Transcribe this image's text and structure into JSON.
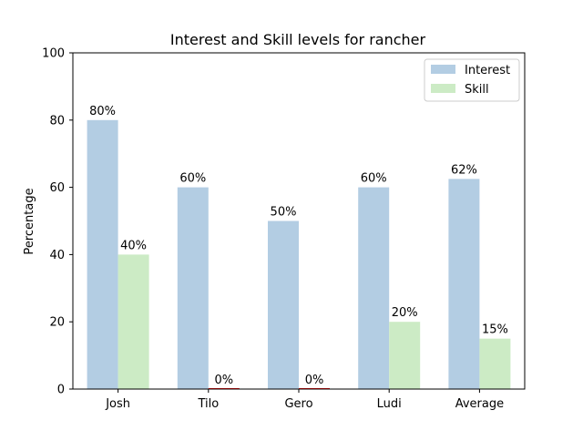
{
  "chart_data": {
    "type": "bar",
    "title": "Interest and Skill levels for rancher",
    "xlabel": "",
    "ylabel": "Percentage",
    "ylim": [
      0,
      100
    ],
    "yticks": [
      0,
      20,
      40,
      60,
      80,
      100
    ],
    "categories": [
      "Josh",
      "Tilo",
      "Gero",
      "Ludi",
      "Average"
    ],
    "series": [
      {
        "name": "Interest",
        "color": "#b3cde3",
        "values": [
          80,
          60,
          50,
          60,
          62.5
        ],
        "labels": [
          "80%",
          "60%",
          "50%",
          "60%",
          "62%"
        ]
      },
      {
        "name": "Skill",
        "color": "#ccebc5",
        "values": [
          40,
          0,
          0,
          20,
          15
        ],
        "labels": [
          "40%",
          "0%",
          "0%",
          "20%",
          "15%"
        ]
      }
    ],
    "zero_marker_color": "#ff0000",
    "grid": false,
    "legend_position": "upper right"
  }
}
